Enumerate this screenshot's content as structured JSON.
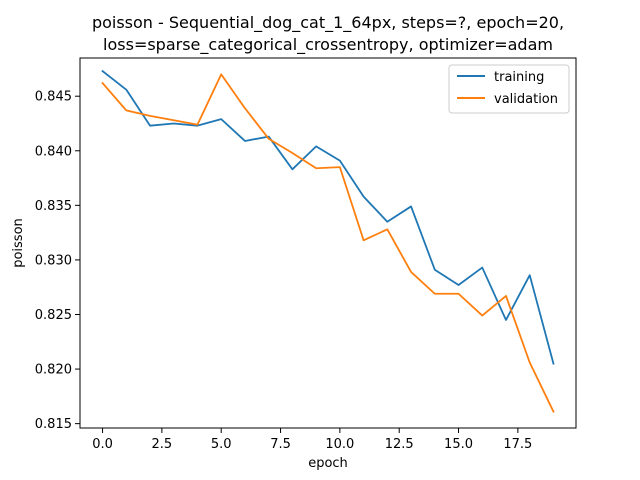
{
  "chart_data": {
    "type": "line",
    "title_line1": "poisson - Sequential_dog_cat_1_64px, steps=?, epoch=20,",
    "title_line2": "loss=sparse_categorical_crossentropy, optimizer=adam",
    "xlabel": "epoch",
    "ylabel": "poisson",
    "xlim": [
      -0.95,
      19.95
    ],
    "ylim": [
      0.8146,
      0.8485
    ],
    "xticks": [
      0,
      2.5,
      5,
      7.5,
      10,
      12.5,
      15,
      17.5
    ],
    "xtick_labels": [
      "0.0",
      "2.5",
      "5.0",
      "7.5",
      "10.0",
      "12.5",
      "15.0",
      "17.5"
    ],
    "yticks": [
      0.815,
      0.82,
      0.825,
      0.83,
      0.835,
      0.84,
      0.845
    ],
    "ytick_labels": [
      "0.815",
      "0.820",
      "0.825",
      "0.830",
      "0.835",
      "0.840",
      "0.845"
    ],
    "grid": false,
    "legend_position": "top-right",
    "x": [
      0,
      1,
      2,
      3,
      4,
      5,
      6,
      7,
      8,
      9,
      10,
      11,
      12,
      13,
      14,
      15,
      16,
      17,
      18,
      19
    ],
    "series": [
      {
        "name": "training",
        "color": "#1f77b4",
        "values": [
          0.8473,
          0.8456,
          0.8423,
          0.8425,
          0.8423,
          0.8429,
          0.8409,
          0.8413,
          0.8383,
          0.8404,
          0.8391,
          0.8358,
          0.8335,
          0.8349,
          0.8291,
          0.8277,
          0.8293,
          0.8245,
          0.8286,
          0.8205
        ]
      },
      {
        "name": "validation",
        "color": "#ff7f0e",
        "values": [
          0.8462,
          0.8437,
          0.8432,
          0.8428,
          0.8424,
          0.847,
          0.8439,
          0.8411,
          0.8398,
          0.8384,
          0.8385,
          0.8318,
          0.8328,
          0.8289,
          0.8269,
          0.8269,
          0.8249,
          0.8267,
          0.8206,
          0.8161
        ]
      }
    ]
  }
}
